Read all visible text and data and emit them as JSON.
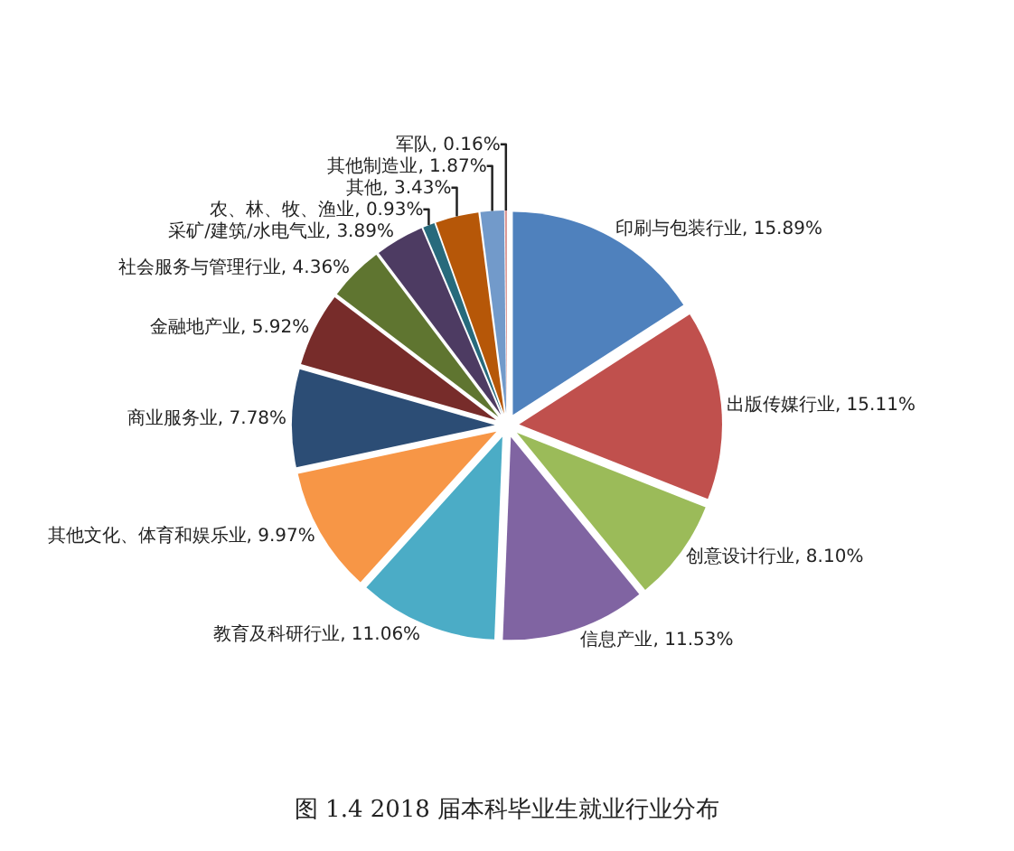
{
  "chart_data": {
    "type": "pie",
    "title": "图 1.4 2018 届本科毕业生就业行业分布",
    "categories": [
      "印刷与包装行业",
      "出版传媒行业",
      "创意设计行业",
      "信息产业",
      "教育及科研行业",
      "其他文化、体育和娱乐业",
      "商业服务业",
      "金融地产业",
      "社会服务与管理行业",
      "采矿/建筑/水电气业",
      "农、林、牧、渔业",
      "其他",
      "其他制造业",
      "军队"
    ],
    "values": [
      15.89,
      15.11,
      8.1,
      11.53,
      11.06,
      9.97,
      7.78,
      5.92,
      4.36,
      3.89,
      0.93,
      3.43,
      1.87,
      0.16
    ],
    "value_labels": [
      "15.89%",
      "15.11%",
      "8.10%",
      "11.53%",
      "11.06%",
      "9.97%",
      "7.78%",
      "5.92%",
      "4.36%",
      "3.89%",
      "0.93%",
      "3.43%",
      "1.87%",
      "0.16%"
    ],
    "colors": [
      "#4f81bd",
      "#c0504d",
      "#9bbb59",
      "#8064a2",
      "#4bacc6",
      "#f79646",
      "#2c4d75",
      "#772c2a",
      "#5f7530",
      "#4d3b62",
      "#276a7c",
      "#b65708",
      "#729aca",
      "#d99694"
    ],
    "legend": false
  }
}
